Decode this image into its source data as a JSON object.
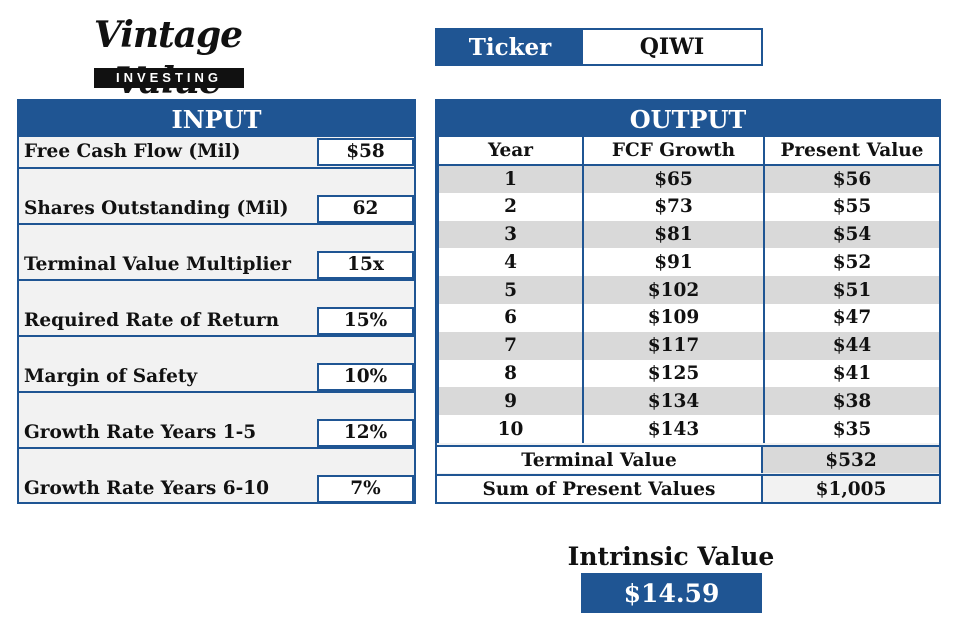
{
  "logo": {
    "script_text": "Vintage Value",
    "bar_text": "INVESTING"
  },
  "ticker": {
    "label": "Ticker",
    "value": "QIWI"
  },
  "input": {
    "title": "INPUT",
    "rows": [
      {
        "label": "Free Cash Flow (Mil)",
        "value": "$58"
      },
      {
        "label": "Shares Outstanding (Mil)",
        "value": "62"
      },
      {
        "label": "Terminal Value Multiplier",
        "value": "15x"
      },
      {
        "label": "Required Rate of Return",
        "value": "15%"
      },
      {
        "label": "Margin of Safety",
        "value": "10%"
      },
      {
        "label": "Growth Rate Years 1-5",
        "value": "12%"
      },
      {
        "label": "Growth Rate Years 6-10",
        "value": "7%"
      }
    ]
  },
  "output": {
    "title": "OUTPUT",
    "headers": [
      "Year",
      "FCF Growth",
      "Present Value"
    ],
    "rows": [
      [
        "1",
        "$65",
        "$56"
      ],
      [
        "2",
        "$73",
        "$55"
      ],
      [
        "3",
        "$81",
        "$54"
      ],
      [
        "4",
        "$91",
        "$52"
      ],
      [
        "5",
        "$102",
        "$51"
      ],
      [
        "6",
        "$109",
        "$47"
      ],
      [
        "7",
        "$117",
        "$44"
      ],
      [
        "8",
        "$125",
        "$41"
      ],
      [
        "9",
        "$134",
        "$38"
      ],
      [
        "10",
        "$143",
        "$35"
      ]
    ],
    "terminal_value_label": "Terminal Value",
    "terminal_value": "$532",
    "sum_pv_label": "Sum of Present Values",
    "sum_pv": "$1,005"
  },
  "intrinsic": {
    "label": "Intrinsic Value",
    "value": "$14.59"
  },
  "colors": {
    "accent": "#1f5593",
    "band": "#d9d9d9",
    "panel": "#f2f2f2"
  }
}
